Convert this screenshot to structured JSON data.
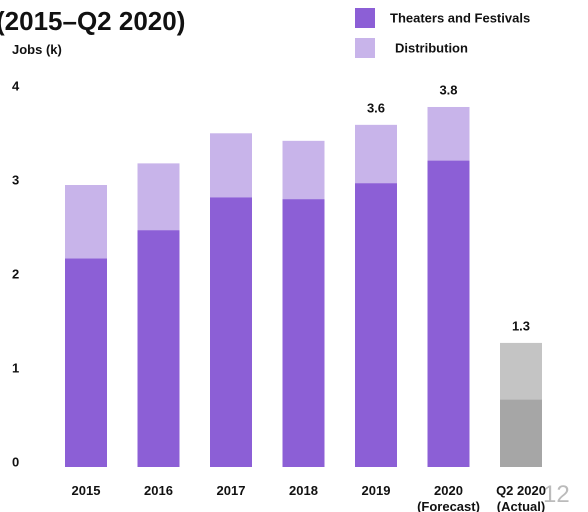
{
  "chart_data": {
    "type": "stacked_bar",
    "title": "(2015–Q2 2020)",
    "y_label": "Jobs (k)",
    "page_number": "12",
    "categories": [
      "2015",
      "2016",
      "2017",
      "2018",
      "2019",
      "2020\n(Forecast)",
      "Q2 2020\n(Actual)"
    ],
    "series": [
      {
        "name": "Theaters and Festivals",
        "color": "#8c5fd6",
        "colors": [
          "#8c5fd6",
          "#8c5fd6",
          "#8c5fd6",
          "#8c5fd6",
          "#8c5fd6",
          "#8c5fd6",
          "#a6a6a6"
        ],
        "values": [
          2.22,
          2.52,
          2.87,
          2.85,
          3.02,
          3.26,
          0.72
        ]
      },
      {
        "name": "Distribution",
        "color": "#c8b4ea",
        "colors": [
          "#c8b4ea",
          "#c8b4ea",
          "#c8b4ea",
          "#c8b4ea",
          "#c8b4ea",
          "#c8b4ea",
          "#c4c4c4"
        ],
        "values": [
          0.78,
          0.71,
          0.68,
          0.62,
          0.62,
          0.57,
          0.6
        ]
      }
    ],
    "total_labels": [
      null,
      null,
      null,
      null,
      "3.6",
      "3.8",
      "1.3"
    ],
    "ylim": [
      0,
      4
    ],
    "yticks": [
      0,
      1,
      2,
      3,
      4
    ],
    "grid": false,
    "legend": "top-right"
  }
}
